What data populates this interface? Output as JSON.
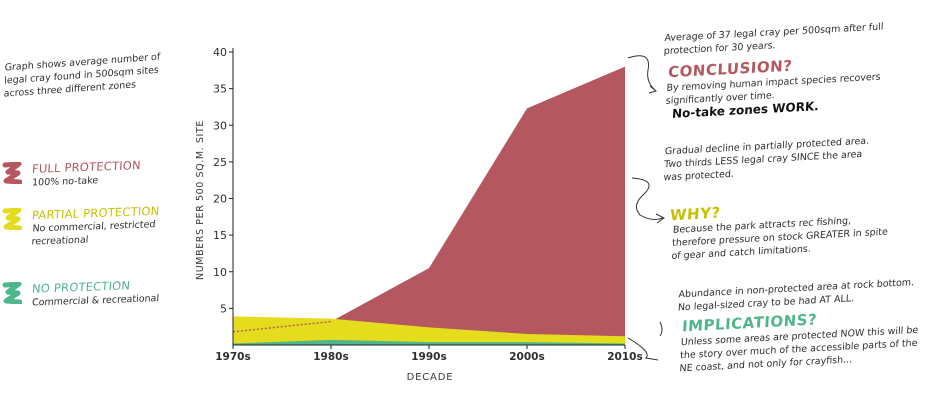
{
  "intro_text": "Graph shows average number of legal cray found in 500sqm sites across three different zones",
  "legend": [
    {
      "title": "FULL PROTECTION",
      "desc": "100% no-take",
      "color": "#b5575e"
    },
    {
      "title": "PARTIAL PROTECTION",
      "desc": "No commercial, restricted recreational",
      "color": "#e4dc1c"
    },
    {
      "title": "NO PROTECTION",
      "desc": "Commercial & recreational",
      "color": "#4fb58a"
    }
  ],
  "annotations": {
    "conclusion": {
      "lead": "Average of 37 legal cray per 500sqm after full protection for 30 years.",
      "heading": "CONCLUSION?",
      "body": "By removing human impact species recovers significantly over time.",
      "strong": "No-take zones WORK."
    },
    "why": {
      "lead": "Gradual decline in partially protected area. Two thirds LESS legal cray SINCE the area was protected.",
      "heading": "WHY?",
      "body": "Because the park attracts rec fishing, therefore pressure on stock GREATER in spite of gear and catch limitations."
    },
    "implications": {
      "lead": "Abundance in non-protected area at rock bottom. No legal-sized cray to be had AT ALL.",
      "heading": "IMPLICATIONS?",
      "body": "Unless some areas are protected NOW this will be the story over much of the accessible parts of the NE coast, and not only for crayfish..."
    }
  },
  "chart_data": {
    "type": "area",
    "xlabel": "DECADE",
    "ylabel": "NUMBERS PER 500 SQ.M. SITE",
    "x": [
      "1970s",
      "1980s",
      "1990s",
      "2000s",
      "2010s"
    ],
    "ylim": [
      0,
      40
    ],
    "yticks": [
      5,
      10,
      15,
      20,
      25,
      30,
      35,
      40
    ],
    "grid": false,
    "series": [
      {
        "name": "FULL PROTECTION",
        "color": "#b5575e",
        "values": [
          1.8,
          3.2,
          10.5,
          32.3,
          38.0
        ]
      },
      {
        "name": "PARTIAL PROTECTION",
        "color": "#e4dc1c",
        "values": [
          3.9,
          3.6,
          2.4,
          1.5,
          1.2
        ]
      },
      {
        "name": "NO PROTECTION",
        "color": "#4fb58a",
        "values": [
          0.2,
          0.7,
          0.4,
          0.4,
          0.2
        ]
      }
    ],
    "full_protection_dotted_segment": true
  }
}
